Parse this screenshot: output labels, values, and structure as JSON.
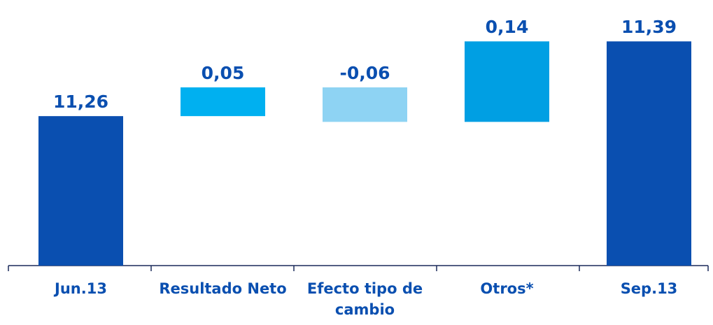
{
  "chart_data": {
    "type": "waterfall",
    "categories": [
      "Jun.13",
      "Resultado Neto",
      "Efecto tipo de cambio",
      "Otros*",
      "Sep.13"
    ],
    "values": [
      11.26,
      0.05,
      -0.06,
      0.14,
      11.39
    ],
    "value_labels": [
      "11,26",
      "0,05",
      "-0,06",
      "0,14",
      "11,39"
    ],
    "colors": [
      "#0a4fb0",
      "#00b0f0",
      "#8ed3f3",
      "#009fe3",
      "#0a4fb0"
    ],
    "ylim": [
      11.0,
      11.462
    ]
  }
}
